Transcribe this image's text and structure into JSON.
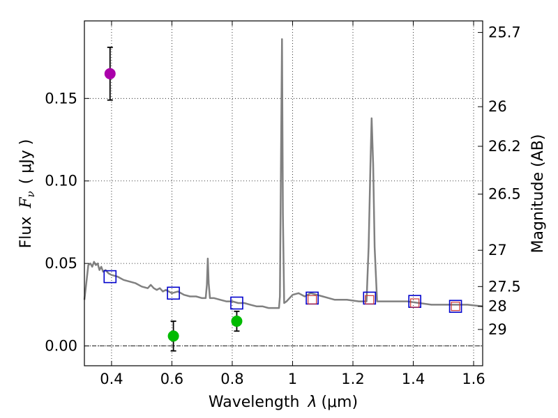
{
  "chart_data": {
    "type": "scatter",
    "title": "",
    "xlabel_prefix": "Wavelength",
    "xlabel_symbol": "λ",
    "xlabel_unit": "(μm)",
    "ylabel_prefix": "Flux",
    "ylabel_symbol": "F",
    "ylabel_subscript": "ν",
    "ylabel_unit": "( μJy )",
    "y2label": "Magnitude (AB)",
    "xlim": [
      0.31,
      1.63
    ],
    "ylim": [
      -0.012,
      0.197
    ],
    "grid": true,
    "x_ticks": [
      0.4,
      0.6,
      0.8,
      1.0,
      1.2,
      1.4,
      1.6
    ],
    "x_tick_labels": [
      "0.4",
      "0.6",
      "0.8",
      "1",
      "1.2",
      "1.4",
      "1.6"
    ],
    "y_ticks": [
      0.0,
      0.05,
      0.1,
      0.15
    ],
    "y_tick_labels": [
      "0.00",
      "0.05",
      "0.10",
      "0.15"
    ],
    "y2_ticks": [
      {
        "label": "25.7",
        "flux": 0.19
      },
      {
        "label": "26",
        "flux": 0.145
      },
      {
        "label": "26.2",
        "flux": 0.121
      },
      {
        "label": "26.5",
        "flux": 0.092
      },
      {
        "label": "27",
        "flux": 0.058
      },
      {
        "label": "27.5",
        "flux": 0.036
      },
      {
        "label": "28",
        "flux": 0.024
      },
      {
        "label": "29",
        "flux": 0.01
      }
    ],
    "series": [
      {
        "name": "model-spectrum",
        "kind": "line",
        "color": "#808080",
        "points": [
          [
            0.31,
            0.028
          ],
          [
            0.318,
            0.041
          ],
          [
            0.323,
            0.049
          ],
          [
            0.33,
            0.05
          ],
          [
            0.336,
            0.048
          ],
          [
            0.342,
            0.051
          ],
          [
            0.348,
            0.049
          ],
          [
            0.354,
            0.05
          ],
          [
            0.36,
            0.046
          ],
          [
            0.366,
            0.048
          ],
          [
            0.372,
            0.045
          ],
          [
            0.38,
            0.046
          ],
          [
            0.39,
            0.044
          ],
          [
            0.4,
            0.043
          ],
          [
            0.42,
            0.042
          ],
          [
            0.44,
            0.04
          ],
          [
            0.46,
            0.039
          ],
          [
            0.48,
            0.038
          ],
          [
            0.5,
            0.036
          ],
          [
            0.52,
            0.035
          ],
          [
            0.53,
            0.037
          ],
          [
            0.54,
            0.035
          ],
          [
            0.55,
            0.034
          ],
          [
            0.56,
            0.035
          ],
          [
            0.57,
            0.033
          ],
          [
            0.58,
            0.034
          ],
          [
            0.6,
            0.032
          ],
          [
            0.62,
            0.033
          ],
          [
            0.64,
            0.031
          ],
          [
            0.66,
            0.03
          ],
          [
            0.68,
            0.03
          ],
          [
            0.7,
            0.029
          ],
          [
            0.712,
            0.029
          ],
          [
            0.716,
            0.037
          ],
          [
            0.719,
            0.053
          ],
          [
            0.722,
            0.038
          ],
          [
            0.726,
            0.029
          ],
          [
            0.74,
            0.029
          ],
          [
            0.76,
            0.028
          ],
          [
            0.78,
            0.027
          ],
          [
            0.8,
            0.027
          ],
          [
            0.82,
            0.026
          ],
          [
            0.84,
            0.026
          ],
          [
            0.86,
            0.025
          ],
          [
            0.88,
            0.024
          ],
          [
            0.9,
            0.024
          ],
          [
            0.92,
            0.023
          ],
          [
            0.94,
            0.023
          ],
          [
            0.955,
            0.023
          ],
          [
            0.958,
            0.03
          ],
          [
            0.962,
            0.12
          ],
          [
            0.965,
            0.186
          ],
          [
            0.968,
            0.08
          ],
          [
            0.972,
            0.026
          ],
          [
            0.98,
            0.027
          ],
          [
            1.0,
            0.031
          ],
          [
            1.02,
            0.032
          ],
          [
            1.04,
            0.03
          ],
          [
            1.06,
            0.032
          ],
          [
            1.08,
            0.031
          ],
          [
            1.1,
            0.03
          ],
          [
            1.12,
            0.029
          ],
          [
            1.14,
            0.028
          ],
          [
            1.18,
            0.028
          ],
          [
            1.22,
            0.027
          ],
          [
            1.245,
            0.027
          ],
          [
            1.252,
            0.06
          ],
          [
            1.258,
            0.11
          ],
          [
            1.262,
            0.138
          ],
          [
            1.267,
            0.11
          ],
          [
            1.272,
            0.06
          ],
          [
            1.28,
            0.027
          ],
          [
            1.3,
            0.027
          ],
          [
            1.34,
            0.027
          ],
          [
            1.38,
            0.027
          ],
          [
            1.42,
            0.026
          ],
          [
            1.46,
            0.025
          ],
          [
            1.5,
            0.025
          ],
          [
            1.54,
            0.025
          ],
          [
            1.58,
            0.025
          ],
          [
            1.63,
            0.024
          ]
        ]
      },
      {
        "name": "model-photometry",
        "kind": "open-square",
        "color": "#0000cc",
        "points": [
          [
            0.395,
            0.042
          ],
          [
            0.605,
            0.032
          ],
          [
            0.815,
            0.026
          ],
          [
            1.065,
            0.029
          ],
          [
            1.255,
            0.029
          ],
          [
            1.405,
            0.027
          ],
          [
            1.54,
            0.024
          ]
        ]
      },
      {
        "name": "observed-upper-limits",
        "kind": "small-open-square",
        "color": "#cc3333",
        "points": [
          [
            1.065,
            0.028
          ],
          [
            1.255,
            0.028
          ],
          [
            1.405,
            0.026
          ],
          [
            1.54,
            0.024
          ]
        ]
      },
      {
        "name": "observed-detections",
        "kind": "point-errorbar",
        "points": [
          {
            "x": 0.395,
            "y": 0.165,
            "err": 0.016,
            "color": "#aa00aa"
          },
          {
            "x": 0.605,
            "y": 0.006,
            "err": 0.009,
            "color": "#00bb00"
          },
          {
            "x": 0.815,
            "y": 0.015,
            "err": 0.006,
            "color": "#00bb00"
          }
        ]
      }
    ]
  }
}
